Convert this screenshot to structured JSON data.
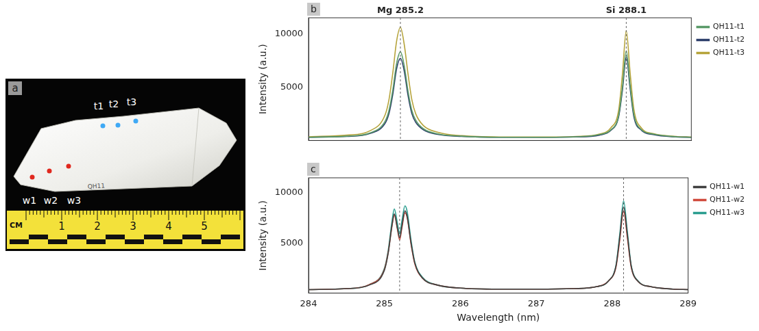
{
  "photo": {
    "panel": "a",
    "stone_label": "QH11",
    "t_points": {
      "labels": [
        "t1",
        "t2",
        "t3"
      ],
      "color": "#3fa9f5"
    },
    "w_points": {
      "labels": [
        "w1",
        "w2",
        "w3"
      ],
      "color": "#e0281e"
    },
    "ruler": {
      "unit": "CM",
      "labels": [
        1,
        2,
        3,
        4,
        5
      ]
    }
  },
  "chart_data": [
    {
      "type": "line",
      "panel": "b",
      "y_label": "Intensity (a.u.)",
      "annotations": [
        {
          "text": "Mg 285.2",
          "x": 285.2
        },
        {
          "text": "Si 288.1",
          "x": 288.15
        }
      ],
      "x": [
        284,
        284.5,
        284.8,
        285.0,
        285.05,
        285.1,
        285.15,
        285.2,
        285.25,
        285.3,
        285.35,
        285.4,
        285.5,
        285.7,
        286.0,
        286.5,
        287.0,
        287.5,
        287.8,
        287.95,
        288.05,
        288.1,
        288.15,
        288.2,
        288.25,
        288.35,
        288.5,
        288.8,
        289
      ],
      "series": [
        {
          "name": "QH11-t1",
          "color": "#5a9a68",
          "values": [
            300,
            400,
            700,
            1800,
            2800,
            4700,
            7200,
            8300,
            7000,
            4600,
            2800,
            1900,
            1100,
            600,
            400,
            300,
            300,
            350,
            550,
            1000,
            2300,
            5000,
            8400,
            5200,
            2400,
            1000,
            600,
            350,
            300
          ]
        },
        {
          "name": "QH11-t2",
          "color": "#2c3e6b",
          "values": [
            300,
            380,
            650,
            1600,
            2500,
            4300,
            6700,
            7700,
            6500,
            4200,
            2500,
            1700,
            1000,
            550,
            380,
            300,
            300,
            330,
            500,
            950,
            2200,
            4700,
            7800,
            4900,
            2200,
            950,
            550,
            330,
            300
          ]
        },
        {
          "name": "QH11-t3",
          "color": "#b5a33a",
          "values": [
            350,
            500,
            900,
            2400,
            3800,
            6300,
            9300,
            10600,
            9000,
            6200,
            3800,
            2500,
            1400,
            750,
            450,
            330,
            320,
            380,
            600,
            1200,
            2800,
            6200,
            10300,
            6400,
            2900,
            1150,
            650,
            380,
            320
          ]
        }
      ],
      "xlim": [
        284,
        289
      ],
      "xticks": [
        284,
        285,
        286,
        287,
        288,
        289
      ],
      "ylim": [
        0,
        11500
      ],
      "yticks": [
        5000,
        10000
      ],
      "grid": false,
      "legend": "right",
      "tick_labels": "y"
    },
    {
      "type": "line",
      "panel": "c",
      "x_label": "Wavelength (nm)",
      "y_label": "Intensity (a.u.)",
      "annotations": [
        {
          "x": 285.2
        },
        {
          "x": 288.15
        }
      ],
      "x": [
        284,
        284.5,
        284.8,
        285.0,
        285.05,
        285.1,
        285.13,
        285.17,
        285.2,
        285.23,
        285.27,
        285.3,
        285.35,
        285.4,
        285.5,
        285.7,
        286.0,
        286.5,
        287.0,
        287.5,
        287.8,
        287.95,
        288.05,
        288.1,
        288.15,
        288.2,
        288.25,
        288.35,
        288.5,
        288.8,
        289
      ],
      "series": [
        {
          "name": "QH11-w1",
          "color": "#404040",
          "values": [
            350,
            450,
            800,
            2300,
            4000,
            6800,
            7900,
            6500,
            5500,
            6700,
            8200,
            7600,
            5000,
            3000,
            1500,
            800,
            500,
            400,
            400,
            450,
            650,
            1200,
            2700,
            5600,
            8600,
            5800,
            2700,
            1100,
            650,
            400,
            350
          ]
        },
        {
          "name": "QH11-w2",
          "color": "#d04a3c",
          "values": [
            350,
            450,
            850,
            2400,
            4100,
            6700,
            7800,
            6400,
            5300,
            6500,
            8000,
            7500,
            4900,
            2900,
            1500,
            800,
            500,
            400,
            400,
            450,
            650,
            1200,
            2600,
            5300,
            8200,
            5500,
            2600,
            1100,
            650,
            400,
            350
          ]
        },
        {
          "name": "QH11-w3",
          "color": "#2a9d8f",
          "values": [
            350,
            450,
            850,
            2500,
            4300,
            7200,
            8400,
            7000,
            5900,
            7200,
            8700,
            8100,
            5300,
            3100,
            1600,
            800,
            500,
            400,
            400,
            450,
            650,
            1200,
            2800,
            5900,
            9200,
            6100,
            2800,
            1150,
            650,
            400,
            350
          ]
        }
      ],
      "xlim": [
        284,
        289
      ],
      "xticks": [
        284,
        285,
        286,
        287,
        288,
        289
      ],
      "ylim": [
        0,
        11500
      ],
      "yticks": [
        5000,
        10000
      ],
      "grid": false,
      "legend": "right"
    }
  ]
}
